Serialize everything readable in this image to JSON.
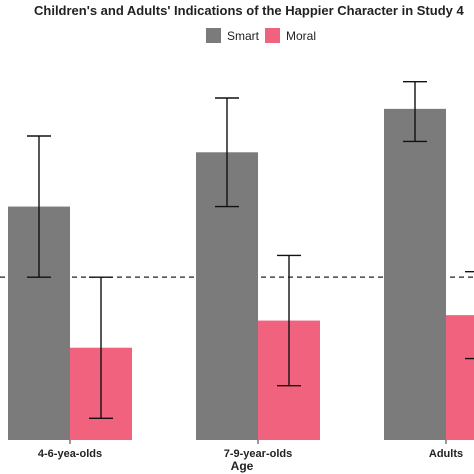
{
  "chart_data": {
    "type": "bar",
    "title": "Children's and Adults' Indications of the Happier Character in Study 4",
    "xlabel": "Age",
    "ylabel": "",
    "categories": [
      "4-6-yea-olds",
      "7-9-year-olds",
      "Adults"
    ],
    "series": [
      {
        "name": "Smart",
        "color": "#7b7b7b",
        "values": [
          0.63,
          0.73,
          0.81
        ],
        "err_low": [
          0.5,
          0.63,
          0.75
        ],
        "err_high": [
          0.76,
          0.83,
          0.86
        ]
      },
      {
        "name": "Moral",
        "color": "#f0627e",
        "values": [
          0.37,
          0.42,
          0.43
        ],
        "err_low": [
          0.24,
          0.3,
          0.35
        ],
        "err_high": [
          0.5,
          0.54,
          0.51
        ]
      }
    ],
    "reference_line": {
      "value": 0.5,
      "style": "dashed"
    },
    "ylim": [
      0.2,
      0.9
    ],
    "legend_position": "top",
    "grid": false
  }
}
